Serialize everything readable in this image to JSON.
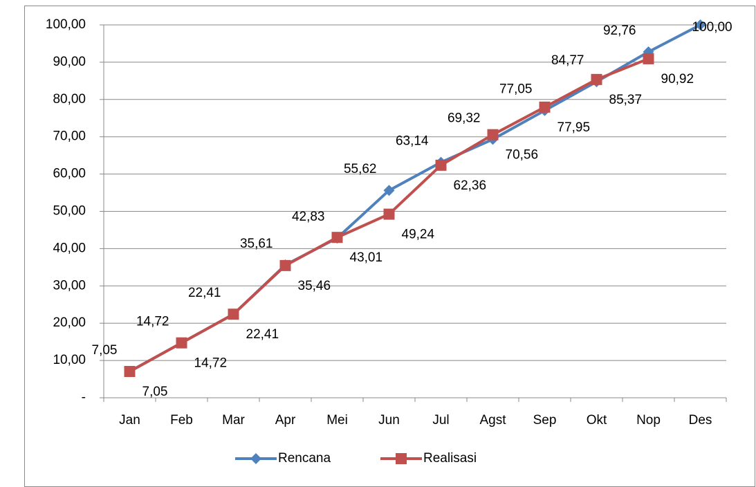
{
  "chart_data": {
    "type": "line",
    "categories": [
      "Jan",
      "Feb",
      "Mar",
      "Apr",
      "Mei",
      "Jun",
      "Jul",
      "Agst",
      "Sep",
      "Okt",
      "Nop",
      "Des"
    ],
    "series": [
      {
        "name": "Rencana",
        "color": "#4f81bd",
        "marker": "diamond",
        "values": [
          7.05,
          14.72,
          22.41,
          35.61,
          42.83,
          55.62,
          63.14,
          69.32,
          77.05,
          84.77,
          92.76,
          100.0
        ],
        "value_labels": [
          "7,05",
          "14,72",
          "22,41",
          "35,61",
          "42,83",
          "55,62",
          "63,14",
          "69,32",
          "77,05",
          "84,77",
          "92,76",
          "100,00"
        ]
      },
      {
        "name": "Realisasi",
        "color": "#c0504d",
        "marker": "square",
        "values": [
          7.05,
          14.72,
          22.41,
          35.46,
          43.01,
          49.24,
          62.36,
          70.56,
          77.95,
          85.37,
          90.92,
          null
        ],
        "value_labels": [
          "7,05",
          "14,72",
          "22,41",
          "35,46",
          "43,01",
          "49,24",
          "62,36",
          "70,56",
          "77,95",
          "85,37",
          "90,92",
          null
        ]
      }
    ],
    "ylim": [
      0,
      100
    ],
    "yticks": [
      {
        "value": 0,
        "label": "-"
      },
      {
        "value": 10,
        "label": "10,00"
      },
      {
        "value": 20,
        "label": "20,00"
      },
      {
        "value": 30,
        "label": "30,00"
      },
      {
        "value": 40,
        "label": "40,00"
      },
      {
        "value": 50,
        "label": "50,00"
      },
      {
        "value": 60,
        "label": "60,00"
      },
      {
        "value": 70,
        "label": "70,00"
      },
      {
        "value": 80,
        "label": "80,00"
      },
      {
        "value": 90,
        "label": "90,00"
      },
      {
        "value": 100,
        "label": {
          "value": 100,
          "label": "100,00"
        }
      }
    ],
    "grid": true,
    "legend": "bottom"
  }
}
